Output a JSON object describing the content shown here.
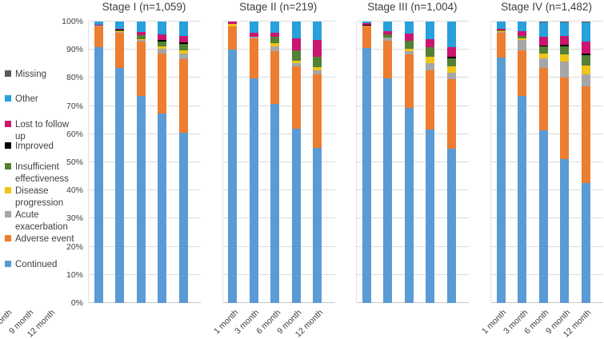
{
  "figure_title": "",
  "axis": {
    "y_ticks": [
      "0%",
      "10%",
      "20%",
      "30%",
      "40%",
      "50%",
      "60%",
      "70%",
      "80%",
      "90%",
      "100%"
    ],
    "ylim": [
      0,
      100
    ],
    "grid": true,
    "gridline_color": "#dcdcdc"
  },
  "legend": {
    "position": "left",
    "items": [
      {
        "label": "Missing",
        "color": "#595959"
      },
      {
        "label": "Other",
        "color": "#27A0DB"
      },
      {
        "label": "Lost to follow up",
        "color": "#C9166E"
      },
      {
        "label": "Improved",
        "color": "#000000"
      },
      {
        "label": "Insufficient effectiveness",
        "color": "#538135"
      },
      {
        "label": "Disease progression",
        "color": "#F0C419"
      },
      {
        "label": "Acute exacerbation",
        "color": "#A6A6A6"
      },
      {
        "label": "Adverse event",
        "color": "#ED7D31"
      },
      {
        "label": "Continued",
        "color": "#5B9BD5"
      }
    ]
  },
  "chart_data": {
    "type": "bar",
    "stacked": true,
    "categories": [
      "1 month",
      "3 month",
      "6 month",
      "9 month",
      "12 month"
    ],
    "stack_order_bottom_to_top": [
      "Continued",
      "Adverse event",
      "Acute exacerbation",
      "Disease progression",
      "Insufficient effectiveness",
      "Improved",
      "Lost to follow up",
      "Other",
      "Missing"
    ],
    "series_colors": {
      "Continued": "#5B9BD5",
      "Adverse event": "#ED7D31",
      "Acute exacerbation": "#A6A6A6",
      "Disease progression": "#F0C419",
      "Insufficient effectiveness": "#538135",
      "Improved": "#000000",
      "Lost to follow up": "#C9166E",
      "Other": "#27A0DB",
      "Missing": "#595959"
    },
    "panels": [
      {
        "title": "Stage I (n=1,059)",
        "series": [
          {
            "name": "Continued",
            "values": [
              91.0,
              83.5,
              73.5,
              67.2,
              60.4
            ]
          },
          {
            "name": "Adverse event",
            "values": [
              7.5,
              12.4,
              19.4,
              21.5,
              26.2
            ]
          },
          {
            "name": "Acute exacerbation",
            "values": [
              0.2,
              0.4,
              0.5,
              1.7,
              2.1
            ]
          },
          {
            "name": "Disease progression",
            "values": [
              0.0,
              0.3,
              0.3,
              0.7,
              1.0
            ]
          },
          {
            "name": "Insufficient effectiveness",
            "values": [
              0.2,
              0.3,
              1.5,
              1.8,
              2.3
            ]
          },
          {
            "name": "Improved",
            "values": [
              0.0,
              0.2,
              0.0,
              0.5,
              0.6
            ]
          },
          {
            "name": "Lost to follow up",
            "values": [
              0.1,
              0.3,
              1.1,
              2.1,
              2.3
            ]
          },
          {
            "name": "Other",
            "values": [
              1.0,
              2.6,
              3.7,
              4.5,
              5.1
            ]
          },
          {
            "name": "Missing",
            "values": [
              0.0,
              0.0,
              0.0,
              0.0,
              0.0
            ]
          }
        ]
      },
      {
        "title": "Stage II (n=219)",
        "series": [
          {
            "name": "Continued",
            "values": [
              90.1,
              79.8,
              70.8,
              61.8,
              55.2
            ]
          },
          {
            "name": "Adverse event",
            "values": [
              8.1,
              14.2,
              18.6,
              22.4,
              26.0
            ]
          },
          {
            "name": "Acute exacerbation",
            "values": [
              0.0,
              0.5,
              1.9,
              0.9,
              1.4
            ]
          },
          {
            "name": "Disease progression",
            "values": [
              0.9,
              0.0,
              0.9,
              0.9,
              1.3
            ]
          },
          {
            "name": "Insufficient effectiveness",
            "values": [
              0.0,
              0.0,
              2.3,
              3.7,
              3.7
            ]
          },
          {
            "name": "Improved",
            "values": [
              0.0,
              0.0,
              0.0,
              0.0,
              0.0
            ]
          },
          {
            "name": "Lost to follow up",
            "values": [
              0.9,
              1.4,
              1.4,
              4.4,
              6.0
            ]
          },
          {
            "name": "Other",
            "values": [
              0.0,
              4.1,
              4.1,
              5.9,
              6.4
            ]
          },
          {
            "name": "Missing",
            "values": [
              0.0,
              0.0,
              0.0,
              0.0,
              0.0
            ]
          }
        ]
      },
      {
        "title": "Stage III (n=1,004)",
        "series": [
          {
            "name": "Continued",
            "values": [
              90.5,
              79.8,
              69.4,
              61.7,
              54.9
            ]
          },
          {
            "name": "Adverse event",
            "values": [
              8.3,
              13.5,
              19.0,
              21.1,
              24.7
            ]
          },
          {
            "name": "Acute exacerbation",
            "values": [
              0.0,
              1.1,
              1.1,
              2.5,
              2.2
            ]
          },
          {
            "name": "Disease progression",
            "values": [
              0.0,
              0.0,
              0.9,
              2.2,
              2.2
            ]
          },
          {
            "name": "Insufficient effectiveness",
            "values": [
              0.0,
              1.1,
              2.8,
              3.5,
              2.8
            ]
          },
          {
            "name": "Improved",
            "values": [
              0.1,
              0.0,
              0.0,
              0.0,
              0.7
            ]
          },
          {
            "name": "Lost to follow up",
            "values": [
              0.4,
              1.1,
              2.5,
              2.8,
              3.3
            ]
          },
          {
            "name": "Other",
            "values": [
              0.7,
              3.4,
              4.3,
              6.2,
              9.2
            ]
          },
          {
            "name": "Missing",
            "values": [
              0.0,
              0.0,
              0.0,
              0.0,
              0.0
            ]
          }
        ]
      },
      {
        "title": "Stage IV (n=1,482)",
        "series": [
          {
            "name": "Continued",
            "values": [
              87.3,
              73.7,
              61.3,
              51.0,
              42.5
            ]
          },
          {
            "name": "Adverse event",
            "values": [
              8.6,
              16.1,
              22.3,
              29.2,
              34.4
            ]
          },
          {
            "name": "Acute exacerbation",
            "values": [
              0.5,
              3.7,
              3.4,
              5.7,
              4.3
            ]
          },
          {
            "name": "Disease progression",
            "values": [
              0.1,
              0.6,
              1.6,
              2.4,
              3.3
            ]
          },
          {
            "name": "Insufficient effectiveness",
            "values": [
              0.4,
              0.7,
              2.7,
              2.9,
              3.5
            ]
          },
          {
            "name": "Improved",
            "values": [
              0.0,
              0.0,
              0.1,
              0.6,
              0.7
            ]
          },
          {
            "name": "Lost to follow up",
            "values": [
              0.5,
              1.7,
              3.2,
              3.2,
              4.3
            ]
          },
          {
            "name": "Other",
            "values": [
              2.6,
              3.5,
              5.2,
              4.8,
              6.7
            ]
          },
          {
            "name": "Missing",
            "values": [
              0.0,
              0.0,
              0.2,
              0.2,
              0.3
            ]
          }
        ]
      }
    ]
  }
}
